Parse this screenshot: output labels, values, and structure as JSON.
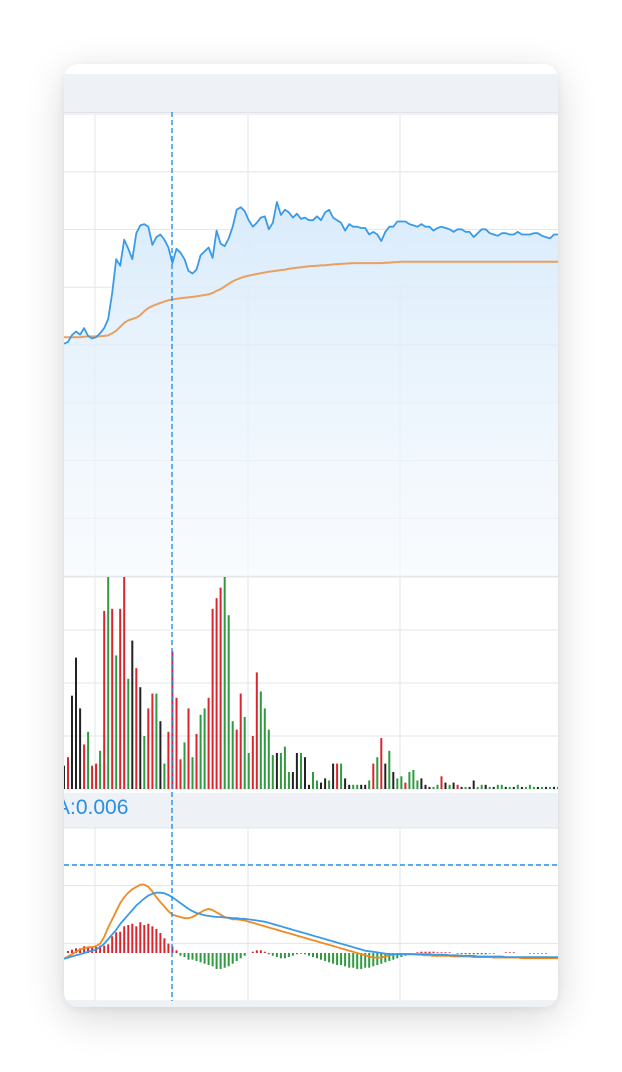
{
  "macd_label": "A:0.006",
  "colors": {
    "price_line": "#3a9ae8",
    "avg_line": "#e8a060",
    "area_fill": "#dceefc",
    "up_bar": "#d9262e",
    "down_bar": "#2f9a3e",
    "flat_bar": "#222222",
    "dif_line": "#3a9ae8",
    "dea_line": "#f08a20",
    "crosshair": "#2a8ee8",
    "grid": "#e3e6ea",
    "band": "#eef1f5"
  },
  "chart_data": [
    {
      "type": "line",
      "name": "intraday-price",
      "x": [
        0,
        1,
        2,
        3,
        4,
        5,
        6,
        7,
        8,
        9,
        10,
        11,
        12,
        13,
        14,
        15,
        16,
        17,
        18,
        19,
        20,
        21,
        22,
        23,
        24,
        25,
        26,
        27,
        28,
        29,
        30,
        31,
        32,
        33,
        34,
        35,
        36,
        37,
        38,
        39,
        40,
        41,
        42,
        43,
        44,
        45,
        46,
        47,
        48,
        49,
        50,
        51,
        52,
        53,
        54,
        55,
        56,
        57,
        58,
        59,
        60,
        61,
        62,
        63,
        64,
        65,
        66,
        67,
        68,
        69,
        70,
        71,
        72,
        73,
        74,
        75,
        76,
        77,
        78,
        79,
        80,
        81,
        82,
        83,
        84,
        85,
        86,
        87,
        88,
        89,
        90,
        91,
        92,
        93,
        94,
        95,
        96,
        97,
        98,
        99,
        100,
        101,
        102,
        103,
        104,
        105,
        106,
        107,
        108,
        109,
        110,
        111,
        112,
        113,
        114,
        115,
        116,
        117,
        118,
        119,
        120,
        121,
        122,
        123
      ],
      "series": [
        {
          "values": [
            0.5,
            1.2,
            3.8,
            5.2,
            4.0,
            6.5,
            3.5,
            2.5,
            3.0,
            4.5,
            6.5,
            10.0,
            20.0,
            33.0,
            30.5,
            40.5,
            37.0,
            33.0,
            43.0,
            46.0,
            46.5,
            45.5,
            38.5,
            41.5,
            42.5,
            40.5,
            37.5,
            31.5,
            37.0,
            35.5,
            33.0,
            28.5,
            27.5,
            29.0,
            34.5,
            36.0,
            37.5,
            33.5,
            44.0,
            39.0,
            38.0,
            41.0,
            45.5,
            52.0,
            53.0,
            51.5,
            48.0,
            45.5,
            47.0,
            49.0,
            49.5,
            44.5,
            47.0,
            55.0,
            50.0,
            52.0,
            51.0,
            49.0,
            50.5,
            48.5,
            49.0,
            48.0,
            48.0,
            49.5,
            48.0,
            51.0,
            52.0,
            49.0,
            48.0,
            47.0,
            44.0,
            46.5,
            45.5,
            45.5,
            45.0,
            45.0,
            42.5,
            43.5,
            42.5,
            40.0,
            43.5,
            45.5,
            45.5,
            47.5,
            47.5,
            47.5,
            46.5,
            46.0,
            45.5,
            46.5,
            45.5,
            45.5,
            44.0,
            45.0,
            45.5,
            45.0,
            44.5,
            43.5,
            44.5,
            44.5,
            43.5,
            43.5,
            41.5,
            43.0,
            44.5,
            44.5,
            43.0,
            42.5,
            42.0,
            43.0,
            43.0,
            42.5,
            42.5,
            43.5,
            42.5,
            42.5,
            42.5,
            43.0,
            43.0,
            42.0,
            41.5,
            41.0,
            42.5,
            42.5
          ]
        },
        {
          "values": [
            3.0,
            3.0,
            3.0,
            3.0,
            3.0,
            3.2,
            3.3,
            3.3,
            3.3,
            3.4,
            3.5,
            3.7,
            4.5,
            5.5,
            7.0,
            8.5,
            9.5,
            10.0,
            10.5,
            11.5,
            13.0,
            14.2,
            15.0,
            15.6,
            16.2,
            16.7,
            17.2,
            17.5,
            17.8,
            18.0,
            18.2,
            18.3,
            18.5,
            18.7,
            19.0,
            19.2,
            19.5,
            20.0,
            20.8,
            21.5,
            22.5,
            23.5,
            24.5,
            25.2,
            25.8,
            26.3,
            26.7,
            27.0,
            27.3,
            27.6,
            27.9,
            28.2,
            28.4,
            28.6,
            28.8,
            29.0,
            29.3,
            29.5,
            29.7,
            29.9,
            30.1,
            30.3,
            30.4,
            30.5,
            30.6,
            30.7,
            30.8,
            31.0,
            31.1,
            31.2,
            31.3,
            31.4,
            31.5,
            31.5,
            31.5,
            31.5,
            31.5,
            31.5,
            31.5,
            31.5,
            31.6,
            31.7,
            31.8,
            31.9,
            32.0,
            32.0,
            32.0,
            32.0,
            32.0,
            32.0,
            32.0,
            32.0,
            32.0,
            32.0,
            32.0,
            32.0,
            32.0,
            32.0,
            32.0,
            32.0,
            32.0,
            32.0,
            32.0,
            32.0,
            32.0,
            32.0,
            32.0,
            32.0,
            32.0,
            32.0,
            32.0,
            32.0,
            32.0,
            32.0,
            32.0,
            32.0,
            32.0,
            32.0,
            32.0,
            32.0,
            32.0,
            32.0,
            32.0,
            32.0
          ]
        }
      ],
      "grid": true
    },
    {
      "type": "bar",
      "name": "volume",
      "values": [
        11,
        15,
        44,
        62,
        38,
        21,
        27,
        11,
        12,
        18,
        84,
        100,
        85,
        63,
        85,
        100,
        52,
        70,
        57,
        48,
        25,
        38,
        45,
        45,
        32,
        12,
        27,
        65,
        43,
        14,
        22,
        38,
        15,
        26,
        35,
        38,
        43,
        85,
        90,
        95,
        100,
        82,
        32,
        28,
        45,
        34,
        17,
        25,
        55,
        46,
        38,
        28,
        16,
        17,
        17,
        20,
        8,
        8,
        17,
        17,
        15,
        2,
        8,
        4,
        3,
        5,
        4,
        12,
        12,
        12,
        5,
        2,
        2,
        2,
        2,
        2,
        4,
        12,
        15,
        24,
        12,
        18,
        8,
        5,
        6,
        3,
        8,
        9,
        4,
        5,
        2,
        1,
        1,
        2,
        6,
        3,
        2,
        3,
        2,
        1,
        1,
        1,
        4,
        1,
        2,
        2,
        1,
        1,
        2,
        2,
        1,
        1,
        1,
        2,
        1,
        1,
        2,
        1,
        1,
        1,
        1,
        1,
        1,
        1
      ],
      "colors": [
        "f",
        "u",
        "f",
        "f",
        "f",
        "u",
        "d",
        "u",
        "u",
        "d",
        "u",
        "d",
        "u",
        "d",
        "u",
        "u",
        "d",
        "f",
        "u",
        "f",
        "d",
        "u",
        "u",
        "d",
        "f",
        "d",
        "u",
        "u",
        "u",
        "u",
        "d",
        "u",
        "d",
        "u",
        "d",
        "d",
        "u",
        "u",
        "u",
        "u",
        "d",
        "d",
        "d",
        "u",
        "u",
        "d",
        "d",
        "u",
        "u",
        "d",
        "d",
        "d",
        "d",
        "f",
        "d",
        "d",
        "d",
        "f",
        "f",
        "d",
        "f",
        "f",
        "d",
        "d",
        "f",
        "f",
        "d",
        "f",
        "u",
        "d",
        "f",
        "f",
        "d",
        "d",
        "f",
        "f",
        "d",
        "u",
        "d",
        "u",
        "f",
        "d",
        "f",
        "d",
        "d",
        "u",
        "d",
        "d",
        "d",
        "f",
        "f",
        "f",
        "d",
        "d",
        "u",
        "f",
        "d",
        "f",
        "u",
        "f",
        "d",
        "f",
        "f",
        "d",
        "d",
        "f",
        "d",
        "f",
        "d",
        "d",
        "f",
        "d",
        "f",
        "d",
        "f",
        "d",
        "d",
        "d",
        "f",
        "d",
        "f",
        "d",
        "f",
        "d"
      ],
      "grid": true
    },
    {
      "type": "line",
      "name": "macd",
      "histogram": [
        0,
        3,
        5,
        7,
        7,
        10,
        8,
        10,
        9,
        11,
        11,
        13,
        25,
        31,
        32,
        40,
        42,
        44,
        40,
        46,
        42,
        44,
        40,
        36,
        30,
        22,
        14,
        10,
        4,
        -4,
        -6,
        -10,
        -10,
        -12,
        -14,
        -16,
        -18,
        -20,
        -24,
        -24,
        -22,
        -20,
        -16,
        -12,
        -8,
        -4,
        0,
        2,
        4,
        4,
        2,
        -2,
        -4,
        -6,
        -8,
        -8,
        -6,
        -4,
        -2,
        -1,
        -2,
        -4,
        -6,
        -8,
        -10,
        -12,
        -14,
        -16,
        -18,
        -18,
        -20,
        -22,
        -22,
        -24,
        -24,
        -22,
        -22,
        -20,
        -18,
        -16,
        -14,
        -12,
        -10,
        -8,
        -6,
        -4,
        -2,
        0,
        1,
        2,
        2,
        2,
        2,
        1,
        1,
        1,
        1,
        0,
        -1,
        -2,
        -2,
        -2,
        -2,
        -2,
        -2,
        -2,
        -1,
        -1,
        0,
        0,
        1,
        1,
        1,
        0,
        0,
        0,
        -1,
        -1,
        -1,
        -1,
        -1,
        0,
        0,
        0
      ],
      "series": [
        {
          "values": [
            -10,
            -8,
            -6,
            -4,
            -2,
            0,
            2,
            4,
            6,
            10,
            16,
            24,
            32,
            40,
            50,
            58,
            66,
            74,
            82,
            88,
            94,
            99,
            102,
            104,
            104,
            103,
            100,
            96,
            91,
            86,
            81,
            76,
            72,
            69,
            67,
            65,
            64,
            63,
            62,
            62,
            61,
            61,
            60,
            60,
            59,
            59,
            58,
            57,
            56,
            55,
            54,
            52,
            50,
            48,
            46,
            44,
            42,
            40,
            38,
            36,
            34,
            32,
            30,
            28,
            26,
            24,
            22,
            20,
            18,
            16,
            14,
            12,
            10,
            8,
            6,
            4,
            3,
            2,
            1,
            0,
            -1,
            -2,
            -2,
            -2,
            -2,
            -2,
            -2,
            -2,
            -2,
            -2,
            -2,
            -2,
            -3,
            -3,
            -3,
            -3,
            -4,
            -4,
            -4,
            -5,
            -5,
            -5,
            -5,
            -6,
            -6,
            -6,
            -6,
            -6,
            -6,
            -6,
            -7,
            -7,
            -7,
            -7,
            -7,
            -7,
            -7,
            -7,
            -7,
            -7,
            -7,
            -7,
            -7,
            -7
          ]
        },
        {
          "values": [
            -10,
            -6,
            -2,
            2,
            6,
            8,
            10,
            10,
            12,
            16,
            28,
            44,
            58,
            72,
            86,
            96,
            104,
            110,
            114,
            118,
            118,
            114,
            106,
            96,
            88,
            80,
            72,
            66,
            64,
            62,
            60,
            60,
            62,
            66,
            70,
            74,
            76,
            74,
            70,
            66,
            62,
            60,
            58,
            58,
            57,
            56,
            54,
            52,
            50,
            48,
            46,
            44,
            42,
            40,
            38,
            36,
            34,
            32,
            30,
            28,
            26,
            24,
            22,
            20,
            18,
            16,
            14,
            12,
            10,
            8,
            6,
            4,
            2,
            0,
            -2,
            -4,
            -6,
            -8,
            -8,
            -8,
            -6,
            -4,
            -3,
            -2,
            -2,
            -2,
            -2,
            -2,
            -3,
            -3,
            -4,
            -4,
            -5,
            -5,
            -5,
            -5,
            -5,
            -6,
            -6,
            -6,
            -6,
            -6,
            -7,
            -7,
            -7,
            -7,
            -7,
            -8,
            -8,
            -8,
            -8,
            -8,
            -8,
            -8,
            -9,
            -9,
            -9,
            -9,
            -9,
            -9,
            -9,
            -9,
            -9,
            -9
          ]
        }
      ],
      "grid": true
    }
  ]
}
